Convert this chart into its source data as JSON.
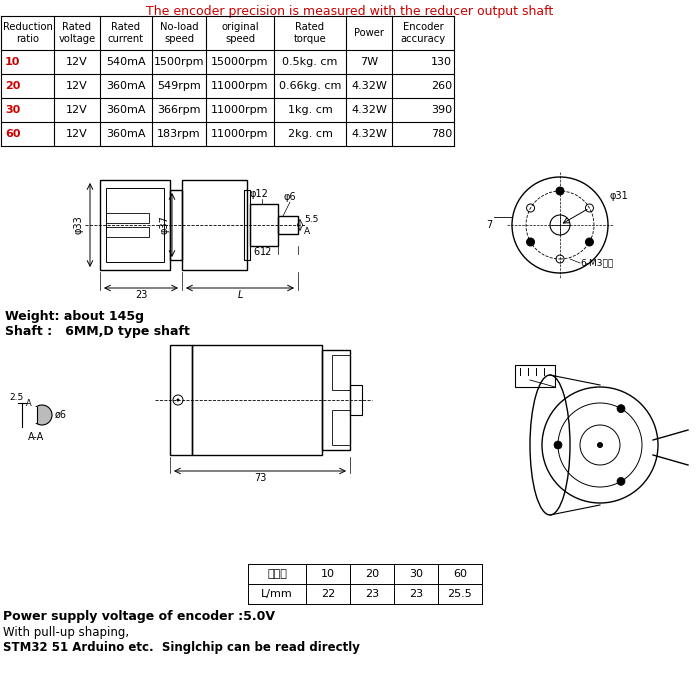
{
  "title": "The encoder precision is measured with the reducer output shaft",
  "title_color": "#cc0000",
  "bg_color": "#ffffff",
  "table_headers": [
    "Reduction\nratio",
    "Rated\nvoltage",
    "Rated\ncurrent",
    "No-load\nspeed",
    "original\nspeed",
    "Rated\ntorque",
    "Power",
    "Encoder\naccuracy"
  ],
  "table_rows": [
    [
      "10",
      "12V",
      "540mA",
      "1500rpm",
      "15000rpm",
      "0.5kg. cm",
      "7W",
      "130"
    ],
    [
      "20",
      "12V",
      "360mA",
      "549rpm",
      "11000rpm",
      "0.66kg. cm",
      "4.32W",
      "260"
    ],
    [
      "30",
      "12V",
      "360mA",
      "366rpm",
      "11000rpm",
      "1kg. cm",
      "4.32W",
      "390"
    ],
    [
      "60",
      "12V",
      "360mA",
      "183rpm",
      "11000rpm",
      "2kg. cm",
      "4.32W",
      "780"
    ]
  ],
  "red_ratios": [
    "10",
    "20",
    "30",
    "60"
  ],
  "weight_text": "Weight: about 145g",
  "shaft_text": "Shaft :   6MM,D type shaft",
  "power_text": "Power supply voltage of encoder :5.0V",
  "pull_text": "With pull-up shaping,",
  "stm_text": "STM32 51 Arduino etc.  Singlchip can be read directly",
  "bottom_table_col0": [
    "减速比",
    "L/mm"
  ],
  "bottom_table_cols": [
    "10",
    "20",
    "30",
    "60"
  ],
  "bottom_table_vals": [
    "22",
    "23",
    "23",
    "25.5"
  ]
}
